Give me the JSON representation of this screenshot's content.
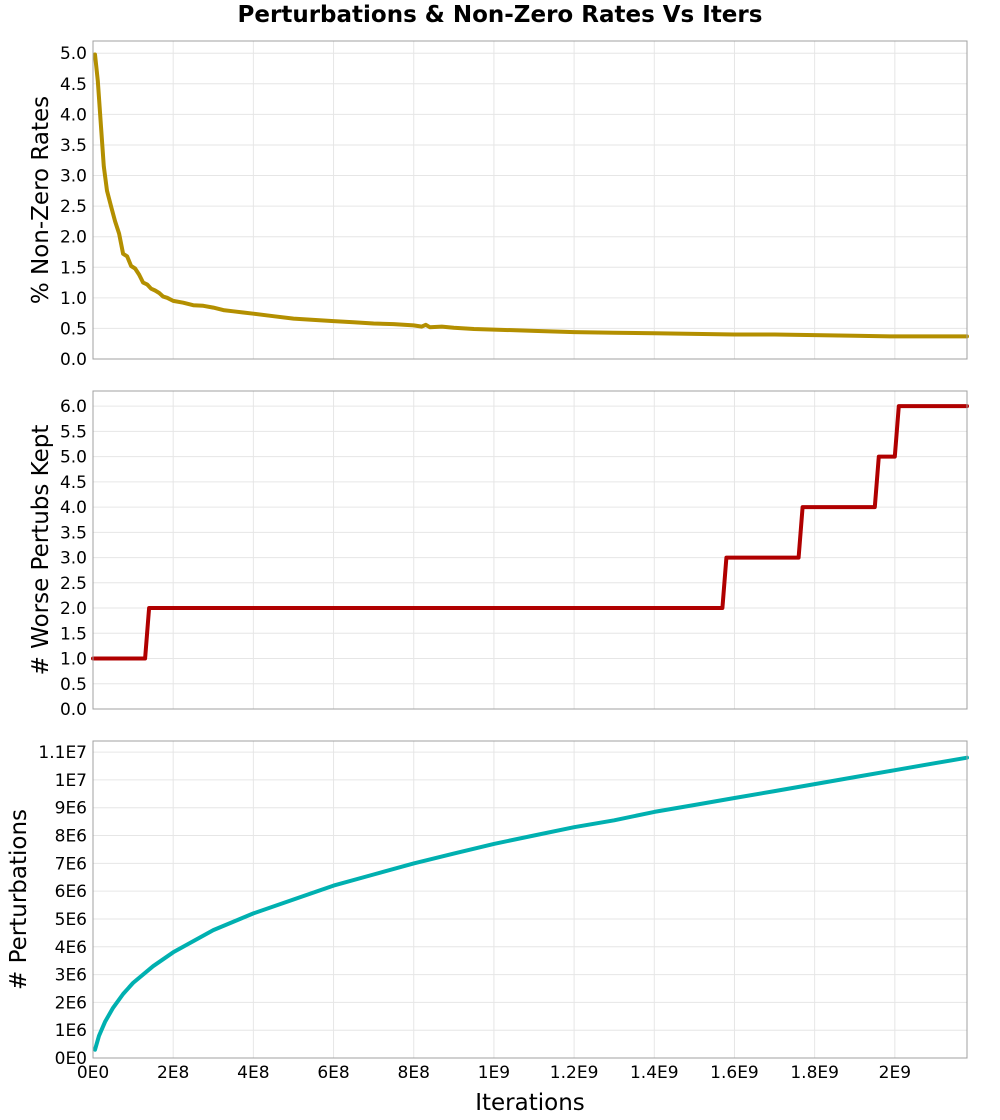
{
  "title": "Perturbations & Non-Zero Rates Vs Iters",
  "chart_data": [
    {
      "type": "line",
      "ylabel": "% Non-Zero Rates",
      "xlabel": "",
      "xlim": [
        0,
        2180000000
      ],
      "ylim": [
        0,
        5.2
      ],
      "yticks": [
        0.0,
        0.5,
        1.0,
        1.5,
        2.0,
        2.5,
        3.0,
        3.5,
        4.0,
        4.5,
        5.0
      ],
      "ytick_labels": [
        "0.0",
        "0.5",
        "1.0",
        "1.5",
        "2.0",
        "2.5",
        "3.0",
        "3.5",
        "4.0",
        "4.5",
        "5.0"
      ],
      "grid": true,
      "color": "#b38f00",
      "step": false,
      "series": [
        {
          "x": [
            5000000,
            12000000,
            20000000,
            27000000,
            35000000,
            45000000,
            55000000,
            65000000,
            75000000,
            85000000,
            95000000,
            105000000,
            115000000,
            125000000,
            135000000,
            145000000,
            155000000,
            165000000,
            175000000,
            185000000,
            200000000,
            225000000,
            250000000,
            275000000,
            300000000,
            325000000,
            350000000,
            375000000,
            400000000,
            450000000,
            500000000,
            550000000,
            600000000,
            650000000,
            700000000,
            750000000,
            800000000,
            820000000,
            830000000,
            840000000,
            870000000,
            900000000,
            950000000,
            1000000000,
            1100000000,
            1200000000,
            1300000000,
            1400000000,
            1500000000,
            1600000000,
            1700000000,
            1800000000,
            1900000000,
            2000000000,
            2100000000,
            2180000000
          ],
          "y": [
            4.98,
            4.55,
            3.8,
            3.15,
            2.75,
            2.5,
            2.25,
            2.05,
            1.72,
            1.68,
            1.52,
            1.48,
            1.38,
            1.25,
            1.22,
            1.15,
            1.12,
            1.08,
            1.02,
            1.0,
            0.95,
            0.92,
            0.88,
            0.87,
            0.84,
            0.8,
            0.78,
            0.76,
            0.74,
            0.7,
            0.66,
            0.64,
            0.62,
            0.6,
            0.58,
            0.57,
            0.55,
            0.53,
            0.56,
            0.52,
            0.53,
            0.51,
            0.49,
            0.48,
            0.46,
            0.44,
            0.43,
            0.42,
            0.41,
            0.4,
            0.4,
            0.39,
            0.38,
            0.37,
            0.37,
            0.37
          ]
        }
      ]
    },
    {
      "type": "line",
      "ylabel": "# Worse Pertubs Kept",
      "xlabel": "",
      "xlim": [
        0,
        2180000000
      ],
      "ylim": [
        0,
        6.3
      ],
      "yticks": [
        0.0,
        0.5,
        1.0,
        1.5,
        2.0,
        2.5,
        3.0,
        3.5,
        4.0,
        4.5,
        5.0,
        5.5,
        6.0
      ],
      "ytick_labels": [
        "0.0",
        "0.5",
        "1.0",
        "1.5",
        "2.0",
        "2.5",
        "3.0",
        "3.5",
        "4.0",
        "4.5",
        "5.0",
        "5.5",
        "6.0"
      ],
      "grid": true,
      "color": "#b00000",
      "step": true,
      "series": [
        {
          "x": [
            0,
            130000000,
            140000000,
            1570000000,
            1580000000,
            1760000000,
            1770000000,
            1950000000,
            1960000000,
            2000000000,
            2010000000,
            2180000000
          ],
          "y": [
            1,
            1,
            2,
            2,
            3,
            3,
            4,
            4,
            5,
            5,
            6,
            6
          ]
        }
      ]
    },
    {
      "type": "line",
      "ylabel": "# Perturbations",
      "xlabel": "Iterations",
      "xlim": [
        0,
        2180000000
      ],
      "ylim": [
        0,
        11400000
      ],
      "yticks": [
        0,
        1000000,
        2000000,
        3000000,
        4000000,
        5000000,
        6000000,
        7000000,
        8000000,
        9000000,
        10000000,
        11000000
      ],
      "ytick_labels": [
        "0E0",
        "1E6",
        "2E6",
        "3E6",
        "4E6",
        "5E6",
        "6E6",
        "7E6",
        "8E6",
        "9E6",
        "1E7",
        "1.1E7"
      ],
      "xticks": [
        0,
        200000000,
        400000000,
        600000000,
        800000000,
        1000000000,
        1200000000,
        1400000000,
        1600000000,
        1800000000,
        2000000000
      ],
      "xtick_labels": [
        "0E0",
        "2E8",
        "4E8",
        "6E8",
        "8E8",
        "1E9",
        "1.2E9",
        "1.4E9",
        "1.6E9",
        "1.8E9",
        "2E9"
      ],
      "grid": true,
      "color": "#00b0b0",
      "step": false,
      "series": [
        {
          "x": [
            5000000,
            15000000,
            30000000,
            50000000,
            75000000,
            100000000,
            150000000,
            200000000,
            300000000,
            400000000,
            500000000,
            600000000,
            700000000,
            800000000,
            900000000,
            1000000000,
            1100000000,
            1200000000,
            1300000000,
            1400000000,
            1500000000,
            1600000000,
            1700000000,
            1800000000,
            1900000000,
            2000000000,
            2100000000,
            2180000000
          ],
          "y": [
            300000,
            800000,
            1300000,
            1800000,
            2300000,
            2700000,
            3300000,
            3800000,
            4600000,
            5200000,
            5700000,
            6200000,
            6600000,
            7000000,
            7350000,
            7700000,
            8000000,
            8300000,
            8550000,
            8850000,
            9100000,
            9350000,
            9600000,
            9850000,
            10100000,
            10350000,
            10600000,
            10800000
          ]
        }
      ]
    }
  ]
}
